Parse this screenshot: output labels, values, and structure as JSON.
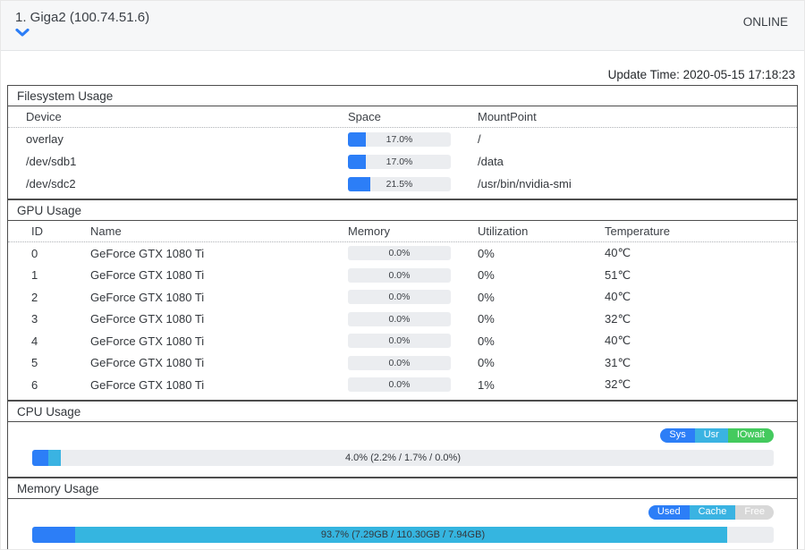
{
  "header": {
    "title": "1. Giga2 (100.74.51.6)",
    "status": "ONLINE"
  },
  "update_time": "Update Time: 2020-05-15 17:18:23",
  "colors": {
    "blue": "#2c7ef7",
    "cyan": "#3ab3e2",
    "green": "#44ca5e",
    "free_gray": "#d8d8d8",
    "track": "#ebedf0"
  },
  "filesystem": {
    "title": "Filesystem Usage",
    "columns": [
      "Device",
      "Space",
      "MountPoint"
    ],
    "rows": [
      {
        "device": "overlay",
        "space_pct": 17.0,
        "space_label": "17.0%",
        "mount": "/"
      },
      {
        "device": "/dev/sdb1",
        "space_pct": 17.0,
        "space_label": "17.0%",
        "mount": "/data"
      },
      {
        "device": "/dev/sdc2",
        "space_pct": 21.5,
        "space_label": "21.5%",
        "mount": "/usr/bin/nvidia-smi"
      }
    ]
  },
  "gpu": {
    "title": "GPU Usage",
    "columns": [
      "ID",
      "Name",
      "Memory",
      "Utilization",
      "Temperature"
    ],
    "rows": [
      {
        "id": "0",
        "name": "GeForce GTX 1080 Ti",
        "memory_pct": 0,
        "memory_label": "0.0%",
        "utilization": "0%",
        "temperature": "40℃"
      },
      {
        "id": "1",
        "name": "GeForce GTX 1080 Ti",
        "memory_pct": 0,
        "memory_label": "0.0%",
        "utilization": "0%",
        "temperature": "51℃"
      },
      {
        "id": "2",
        "name": "GeForce GTX 1080 Ti",
        "memory_pct": 0,
        "memory_label": "0.0%",
        "utilization": "0%",
        "temperature": "40℃"
      },
      {
        "id": "3",
        "name": "GeForce GTX 1080 Ti",
        "memory_pct": 0,
        "memory_label": "0.0%",
        "utilization": "0%",
        "temperature": "32℃"
      },
      {
        "id": "4",
        "name": "GeForce GTX 1080 Ti",
        "memory_pct": 0,
        "memory_label": "0.0%",
        "utilization": "0%",
        "temperature": "40℃"
      },
      {
        "id": "5",
        "name": "GeForce GTX 1080 Ti",
        "memory_pct": 0,
        "memory_label": "0.0%",
        "utilization": "0%",
        "temperature": "31℃"
      },
      {
        "id": "6",
        "name": "GeForce GTX 1080 Ti",
        "memory_pct": 0,
        "memory_label": "0.0%",
        "utilization": "1%",
        "temperature": "32℃"
      }
    ]
  },
  "cpu": {
    "title": "CPU Usage",
    "legend": [
      {
        "label": "Sys",
        "color": "#2c7ef7"
      },
      {
        "label": "Usr",
        "color": "#3ab3e2"
      },
      {
        "label": "IOwait",
        "color": "#44ca5e"
      }
    ],
    "bar": {
      "segments": [
        {
          "name": "sys",
          "pct": 2.2,
          "color": "#2c7ef7"
        },
        {
          "name": "usr",
          "pct": 1.7,
          "color": "#3ab3e2"
        },
        {
          "name": "iowait",
          "pct": 0.0,
          "color": "#44ca5e"
        }
      ],
      "label": "4.0% (2.2% / 1.7% / 0.0%)"
    }
  },
  "memory": {
    "title": "Memory Usage",
    "legend": [
      {
        "label": "Used",
        "color": "#2c7ef7"
      },
      {
        "label": "Cache",
        "color": "#3ab3e2"
      },
      {
        "label": "Free",
        "color": "#d8d8d8"
      }
    ],
    "bar": {
      "segments": [
        {
          "name": "used",
          "pct": 5.8,
          "color": "#2c7ef7"
        },
        {
          "name": "cache",
          "pct": 87.9,
          "color": "#35b5e0"
        }
      ],
      "label": "93.7% (7.29GB / 110.30GB / 7.94GB)"
    }
  }
}
